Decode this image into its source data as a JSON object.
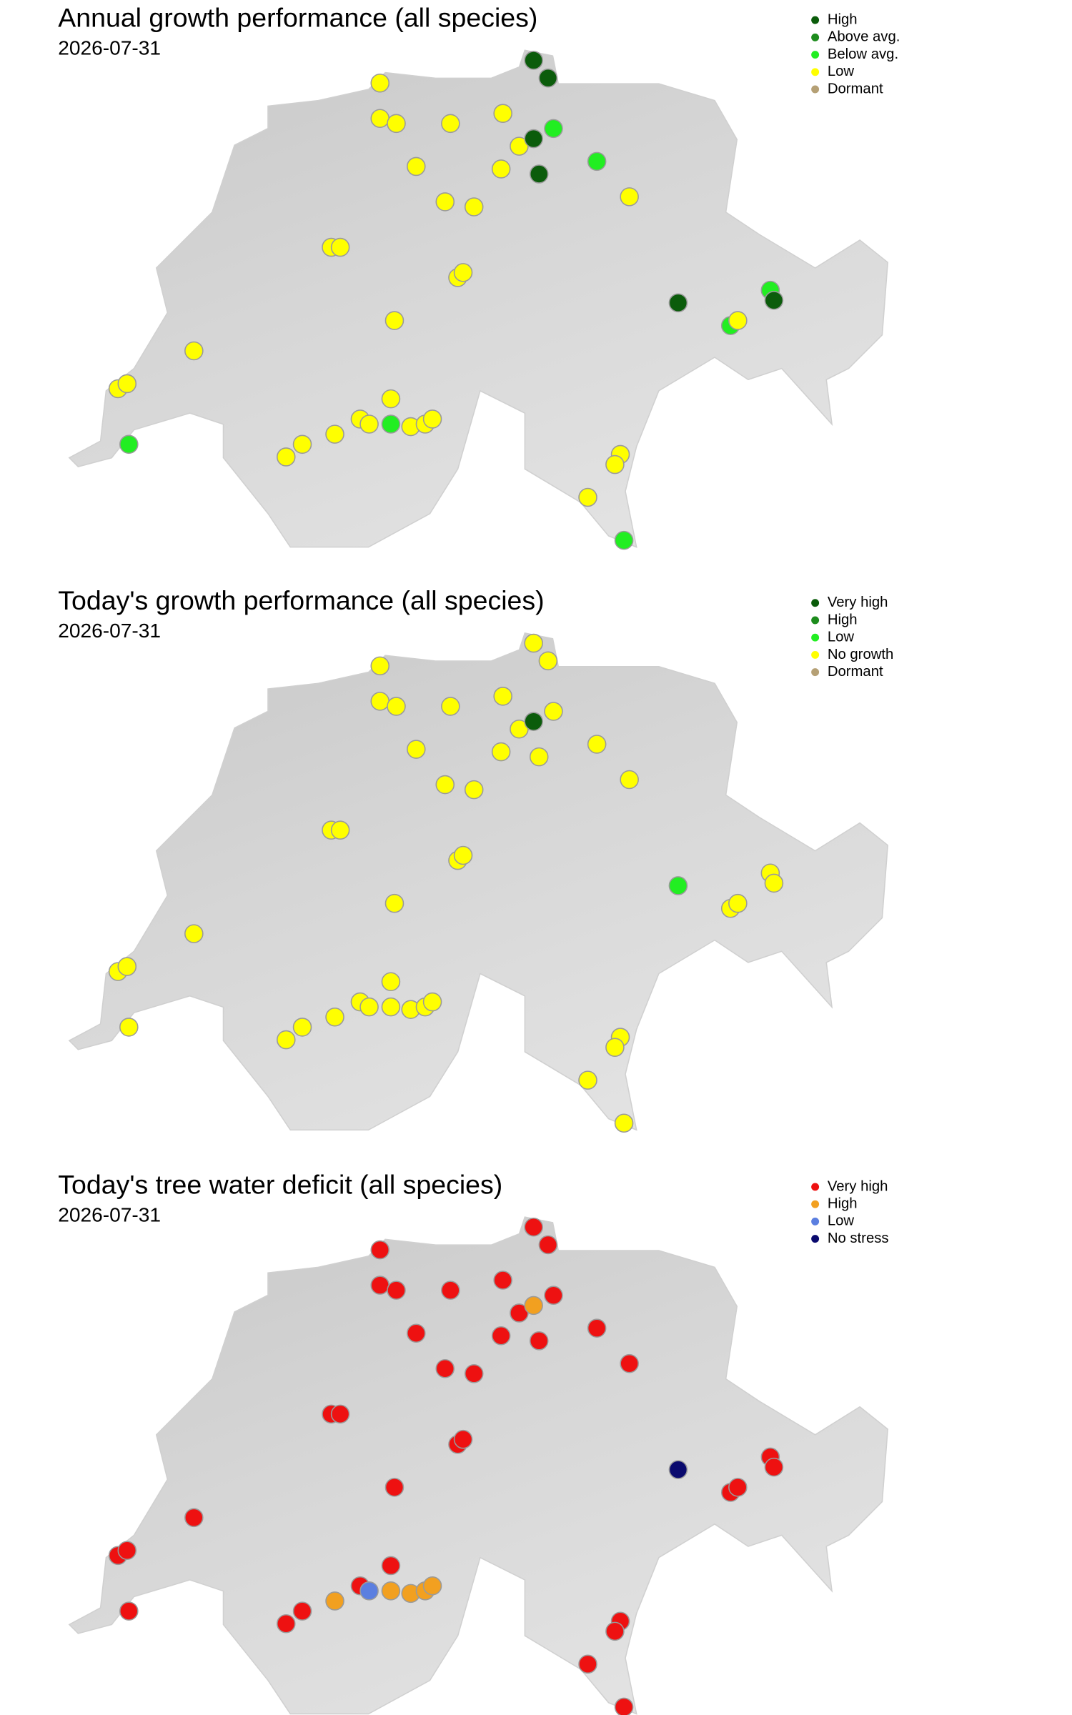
{
  "maps": [
    {
      "title": "Annual growth performance (all species)",
      "date": "2026-07-31",
      "legend": [
        {
          "label": "High",
          "color": "#0b5c0b"
        },
        {
          "label": "Above avg.",
          "color": "#1d8c1d"
        },
        {
          "label": "Below avg.",
          "color": "#22ee22"
        },
        {
          "label": "Low",
          "color": "#ffff00"
        },
        {
          "label": "Dormant",
          "color": "#b5a075"
        }
      ],
      "classes": [
        0,
        0,
        3,
        3,
        3,
        3,
        3,
        3,
        0,
        2,
        3,
        3,
        0,
        2,
        3,
        3,
        3,
        3,
        3,
        3,
        3,
        3,
        3,
        3,
        3,
        2,
        3,
        2,
        3,
        3,
        3,
        3,
        3,
        3,
        3,
        3,
        0,
        2,
        0,
        2,
        3,
        3,
        3,
        3,
        2
      ]
    },
    {
      "title": "Today's growth performance (all species)",
      "date": "2026-07-31",
      "legend": [
        {
          "label": "Very high",
          "color": "#0b5c0b"
        },
        {
          "label": "High",
          "color": "#1d8c1d"
        },
        {
          "label": "Low",
          "color": "#22ee22"
        },
        {
          "label": "No growth",
          "color": "#ffff00"
        },
        {
          "label": "Dormant",
          "color": "#b5a075"
        }
      ],
      "classes": [
        3,
        3,
        3,
        3,
        3,
        3,
        3,
        3,
        0,
        3,
        3,
        3,
        3,
        3,
        3,
        3,
        3,
        3,
        3,
        3,
        3,
        3,
        3,
        3,
        3,
        3,
        3,
        3,
        3,
        3,
        3,
        3,
        3,
        3,
        3,
        3,
        2,
        3,
        3,
        3,
        3,
        3,
        3,
        3,
        3
      ]
    },
    {
      "title": "Today's tree water deficit (all species)",
      "date": "2026-07-31",
      "legend": [
        {
          "label": "Very high",
          "color": "#ee1111"
        },
        {
          "label": "High",
          "color": "#f2a020"
        },
        {
          "label": "Low",
          "color": "#5b7fe0"
        },
        {
          "label": "No stress",
          "color": "#0a0a6e"
        }
      ],
      "classes": [
        0,
        0,
        0,
        0,
        0,
        0,
        0,
        0,
        1,
        0,
        0,
        0,
        0,
        0,
        0,
        0,
        0,
        0,
        0,
        0,
        0,
        0,
        0,
        0,
        0,
        0,
        0,
        1,
        0,
        2,
        1,
        1,
        1,
        1,
        0,
        0,
        3,
        0,
        0,
        0,
        0,
        0,
        0,
        0,
        0
      ]
    }
  ],
  "sites": [
    {
      "lon": 8.53,
      "lat": 47.77
    },
    {
      "lon": 8.61,
      "lat": 47.7
    },
    {
      "lon": 7.68,
      "lat": 47.68
    },
    {
      "lon": 7.68,
      "lat": 47.54
    },
    {
      "lon": 7.77,
      "lat": 47.52
    },
    {
      "lon": 8.07,
      "lat": 47.52
    },
    {
      "lon": 8.36,
      "lat": 47.56
    },
    {
      "lon": 8.45,
      "lat": 47.43
    },
    {
      "lon": 8.53,
      "lat": 47.46
    },
    {
      "lon": 8.64,
      "lat": 47.5
    },
    {
      "lon": 7.88,
      "lat": 47.35
    },
    {
      "lon": 8.35,
      "lat": 47.34
    },
    {
      "lon": 8.56,
      "lat": 47.32
    },
    {
      "lon": 8.88,
      "lat": 47.37
    },
    {
      "lon": 9.06,
      "lat": 47.23
    },
    {
      "lon": 8.04,
      "lat": 47.21
    },
    {
      "lon": 8.2,
      "lat": 47.19
    },
    {
      "lon": 7.41,
      "lat": 47.03
    },
    {
      "lon": 7.46,
      "lat": 47.03
    },
    {
      "lon": 8.11,
      "lat": 46.91
    },
    {
      "lon": 8.14,
      "lat": 46.93
    },
    {
      "lon": 7.76,
      "lat": 46.74
    },
    {
      "lon": 6.65,
      "lat": 46.62
    },
    {
      "lon": 6.23,
      "lat": 46.47
    },
    {
      "lon": 6.28,
      "lat": 46.49
    },
    {
      "lon": 6.29,
      "lat": 46.25
    },
    {
      "lon": 7.74,
      "lat": 46.43
    },
    {
      "lon": 7.74,
      "lat": 46.33
    },
    {
      "lon": 7.57,
      "lat": 46.35
    },
    {
      "lon": 7.62,
      "lat": 46.33
    },
    {
      "lon": 7.43,
      "lat": 46.29
    },
    {
      "lon": 7.85,
      "lat": 46.32
    },
    {
      "lon": 7.93,
      "lat": 46.33
    },
    {
      "lon": 7.97,
      "lat": 46.35
    },
    {
      "lon": 7.25,
      "lat": 46.25
    },
    {
      "lon": 7.16,
      "lat": 46.2
    },
    {
      "lon": 9.33,
      "lat": 46.81
    },
    {
      "lon": 9.84,
      "lat": 46.86
    },
    {
      "lon": 9.86,
      "lat": 46.82
    },
    {
      "lon": 9.62,
      "lat": 46.72
    },
    {
      "lon": 9.66,
      "lat": 46.74
    },
    {
      "lon": 9.01,
      "lat": 46.21
    },
    {
      "lon": 8.98,
      "lat": 46.17
    },
    {
      "lon": 8.83,
      "lat": 46.04
    },
    {
      "lon": 9.03,
      "lat": 45.87
    }
  ]
}
